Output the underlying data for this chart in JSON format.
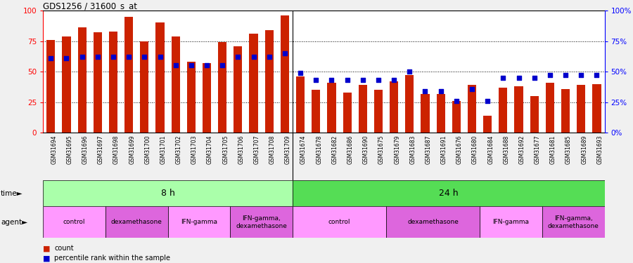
{
  "title": "GDS1256 / 31600_s_at",
  "samples": [
    "GSM31694",
    "GSM31695",
    "GSM31696",
    "GSM31697",
    "GSM31698",
    "GSM31699",
    "GSM31700",
    "GSM31701",
    "GSM31702",
    "GSM31703",
    "GSM31704",
    "GSM31705",
    "GSM31706",
    "GSM31707",
    "GSM31708",
    "GSM31709",
    "GSM31674",
    "GSM31678",
    "GSM31682",
    "GSM31686",
    "GSM31690",
    "GSM31675",
    "GSM31679",
    "GSM31683",
    "GSM31687",
    "GSM31691",
    "GSM31676",
    "GSM31680",
    "GSM31684",
    "GSM31688",
    "GSM31692",
    "GSM31677",
    "GSM31681",
    "GSM31685",
    "GSM31689",
    "GSM31693"
  ],
  "bar_values": [
    76,
    79,
    86,
    82,
    83,
    95,
    75,
    90,
    79,
    58,
    57,
    74,
    71,
    81,
    84,
    96,
    46,
    35,
    41,
    33,
    39,
    35,
    42,
    47,
    32,
    32,
    26,
    39,
    14,
    37,
    38,
    30,
    41,
    36,
    39,
    40
  ],
  "dot_values": [
    61,
    61,
    62,
    62,
    62,
    62,
    62,
    62,
    55,
    55,
    55,
    55,
    62,
    62,
    62,
    65,
    49,
    43,
    43,
    43,
    43,
    43,
    43,
    50,
    34,
    34,
    26,
    36,
    26,
    45,
    45,
    45,
    47,
    47,
    47,
    47
  ],
  "bar_color": "#CC2200",
  "dot_color": "#0000CC",
  "ylim": [
    0,
    100
  ],
  "y_ticks_left": [
    0,
    25,
    50,
    75,
    100
  ],
  "y_ticks_right": [
    0,
    25,
    50,
    75,
    100
  ],
  "y_tick_labels_right": [
    "0%",
    "25%",
    "50%",
    "75%",
    "100%"
  ],
  "dotted_lines": [
    25,
    50,
    75
  ],
  "time_groups": [
    {
      "label": "8 h",
      "start": 0,
      "end": 16,
      "color": "#AAFFAA"
    },
    {
      "label": "24 h",
      "start": 16,
      "end": 36,
      "color": "#55DD55"
    }
  ],
  "agent_groups": [
    {
      "label": "control",
      "start": 0,
      "end": 4,
      "color": "#FF99FF"
    },
    {
      "label": "dexamethasone",
      "start": 4,
      "end": 8,
      "color": "#DD66DD"
    },
    {
      "label": "IFN-gamma",
      "start": 8,
      "end": 12,
      "color": "#FF99FF"
    },
    {
      "label": "IFN-gamma,\ndexamethasone",
      "start": 12,
      "end": 16,
      "color": "#DD66DD"
    },
    {
      "label": "control",
      "start": 16,
      "end": 22,
      "color": "#FF99FF"
    },
    {
      "label": "dexamethasone",
      "start": 22,
      "end": 28,
      "color": "#DD66DD"
    },
    {
      "label": "IFN-gamma",
      "start": 28,
      "end": 32,
      "color": "#FF99FF"
    },
    {
      "label": "IFN-gamma,\ndexamethasone",
      "start": 32,
      "end": 36,
      "color": "#DD66DD"
    }
  ],
  "bar_width": 0.55,
  "bg_color": "#F0F0F0",
  "chart_bg": "#FFFFFF"
}
